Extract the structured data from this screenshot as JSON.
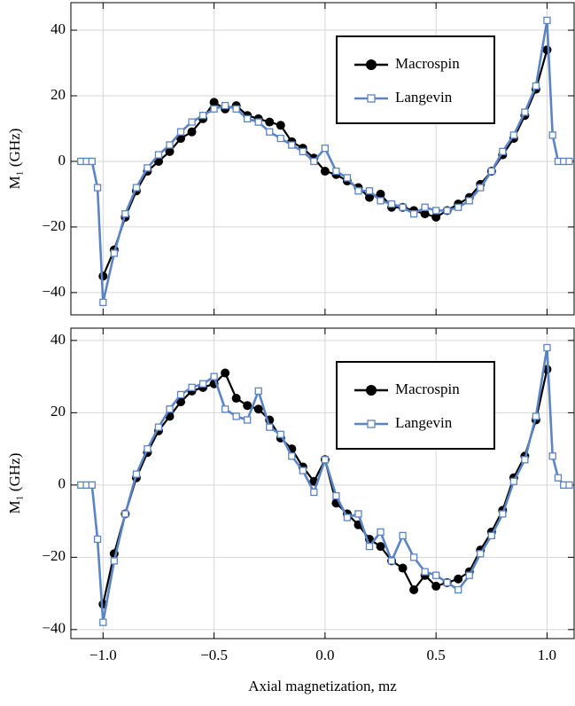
{
  "chart_data": [
    {
      "type": "line",
      "ylabel": "M₁ (GHz)",
      "legend": "upper right",
      "grid": true,
      "xlim": [
        -1.145,
        1.122
      ],
      "ylim": [
        -46.8,
        48.4
      ],
      "xticks": [
        -1,
        -0.5,
        0,
        0.5,
        1
      ],
      "yticks": [
        {
          "value": -40,
          "label": "−40"
        },
        {
          "value": -20,
          "label": "−20"
        },
        0,
        20,
        40
      ],
      "series": [
        {
          "name": "Macrospin",
          "color": "#000000",
          "marker": "circle",
          "x": [
            -1.0,
            -0.95,
            -0.9,
            -0.85,
            -0.8,
            -0.75,
            -0.7,
            -0.65,
            -0.6,
            -0.55,
            -0.5,
            -0.45,
            -0.4,
            -0.35,
            -0.3,
            -0.25,
            -0.2,
            -0.15,
            -0.1,
            -0.05,
            0,
            0.05,
            0.1,
            0.15,
            0.2,
            0.25,
            0.3,
            0.35,
            0.4,
            0.45,
            0.5,
            0.55,
            0.6,
            0.65,
            0.7,
            0.75,
            0.8,
            0.85,
            0.9,
            0.95,
            1.0
          ],
          "values": [
            -35,
            -27,
            -17,
            -9,
            -3,
            0,
            3,
            7,
            9,
            13,
            18,
            16,
            17,
            14,
            13,
            12,
            11,
            6,
            4,
            1,
            -3,
            -4,
            -6,
            -8,
            -11,
            -10,
            -14,
            -14,
            -15,
            -16,
            -17,
            -15,
            -13,
            -11,
            -7,
            -3,
            2,
            7,
            14,
            22,
            34
          ]
        },
        {
          "name": "Langevin",
          "color": "#5b84c4",
          "marker": "square",
          "x": [
            -1.1,
            -1.075,
            -1.05,
            -1.025,
            -1.0,
            -0.95,
            -0.9,
            -0.85,
            -0.8,
            -0.75,
            -0.7,
            -0.65,
            -0.6,
            -0.55,
            -0.5,
            -0.45,
            -0.4,
            -0.35,
            -0.3,
            -0.25,
            -0.2,
            -0.15,
            -0.1,
            -0.05,
            0,
            0.05,
            0.1,
            0.15,
            0.2,
            0.25,
            0.3,
            0.35,
            0.4,
            0.45,
            0.5,
            0.55,
            0.6,
            0.65,
            0.7,
            0.75,
            0.8,
            0.85,
            0.9,
            0.95,
            1.0,
            1.025,
            1.05,
            1.075,
            1.1
          ],
          "values": [
            0,
            0,
            0,
            -8,
            -43,
            -28,
            -16,
            -8,
            -2,
            2,
            5,
            9,
            12,
            14,
            16,
            17,
            16,
            13,
            12,
            9,
            7,
            5,
            3,
            0,
            4,
            -3,
            -5,
            -9,
            -9,
            -12,
            -13,
            -14,
            -16,
            -14,
            -15,
            -15,
            -14,
            -12,
            -8,
            -3,
            3,
            8,
            15,
            23,
            43,
            8,
            0,
            0,
            0
          ]
        }
      ]
    },
    {
      "type": "line",
      "ylabel": "M₁ (GHz)",
      "xlabel": "Axial magnetization, mz",
      "legend": "upper right",
      "grid": true,
      "xlim": [
        -1.145,
        1.122
      ],
      "ylim": [
        -42.5,
        43.4
      ],
      "xticks": [
        {
          "value": -1,
          "label": "−1.0"
        },
        {
          "value": -0.5,
          "label": "−0.5"
        },
        {
          "value": 0,
          "label": "0.0"
        },
        {
          "value": 0.5,
          "label": "0.5"
        },
        {
          "value": 1,
          "label": "1.0"
        }
      ],
      "yticks": [
        {
          "value": -40,
          "label": "−40"
        },
        {
          "value": -20,
          "label": "−20"
        },
        0,
        20,
        40
      ],
      "series": [
        {
          "name": "Macrospin",
          "color": "#000000",
          "marker": "circle",
          "x": [
            -1.0,
            -0.95,
            -0.9,
            -0.85,
            -0.8,
            -0.75,
            -0.7,
            -0.65,
            -0.6,
            -0.55,
            -0.5,
            -0.45,
            -0.4,
            -0.35,
            -0.3,
            -0.25,
            -0.2,
            -0.15,
            -0.1,
            -0.05,
            0,
            0.05,
            0.1,
            0.15,
            0.2,
            0.25,
            0.3,
            0.35,
            0.4,
            0.45,
            0.5,
            0.55,
            0.6,
            0.65,
            0.7,
            0.75,
            0.8,
            0.85,
            0.9,
            0.95,
            1.0
          ],
          "values": [
            -33,
            -19,
            -8,
            2,
            9,
            15,
            19,
            23,
            26,
            27,
            28,
            31,
            24,
            22,
            21,
            18,
            13,
            10,
            5,
            1,
            7,
            -5,
            -8,
            -11,
            -15,
            -17,
            -21,
            -23,
            -29,
            -25,
            -28,
            -27,
            -26,
            -24,
            -18,
            -13,
            -7,
            2,
            8,
            18,
            32
          ]
        },
        {
          "name": "Langevin",
          "color": "#5b84c4",
          "marker": "square",
          "x": [
            -1.1,
            -1.075,
            -1.05,
            -1.025,
            -1.0,
            -0.95,
            -0.9,
            -0.85,
            -0.8,
            -0.75,
            -0.7,
            -0.65,
            -0.6,
            -0.55,
            -0.5,
            -0.45,
            -0.4,
            -0.35,
            -0.3,
            -0.25,
            -0.2,
            -0.15,
            -0.1,
            -0.05,
            0,
            0.05,
            0.1,
            0.15,
            0.2,
            0.25,
            0.3,
            0.35,
            0.4,
            0.45,
            0.5,
            0.55,
            0.6,
            0.65,
            0.7,
            0.75,
            0.8,
            0.85,
            0.9,
            0.95,
            1.0,
            1.025,
            1.05,
            1.075,
            1.1
          ],
          "values": [
            0,
            0,
            0,
            -15,
            -38,
            -21,
            -8,
            3,
            10,
            16,
            21,
            25,
            27,
            28,
            30,
            21,
            19,
            18,
            26,
            16,
            14,
            8,
            4,
            -2,
            7,
            -3,
            -9,
            -8,
            -17,
            -13,
            -21,
            -14,
            -20,
            -24,
            -25,
            -27,
            -29,
            -25,
            -19,
            -14,
            -8,
            1,
            7,
            19,
            38,
            8,
            2,
            0,
            0
          ]
        }
      ]
    }
  ]
}
